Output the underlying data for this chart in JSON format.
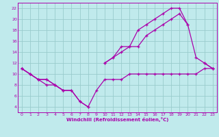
{
  "bg_color": "#c0eaec",
  "line_color": "#aa00aa",
  "grid_color": "#99cccc",
  "xlabel": "Windchill (Refroidissement éolien,°C)",
  "xlim": [
    -0.5,
    23.5
  ],
  "ylim": [
    3,
    23
  ],
  "xticks": [
    0,
    1,
    2,
    3,
    4,
    5,
    6,
    7,
    8,
    9,
    10,
    11,
    12,
    13,
    14,
    15,
    16,
    17,
    18,
    19,
    20,
    21,
    22,
    23
  ],
  "yticks": [
    4,
    6,
    8,
    10,
    12,
    14,
    16,
    18,
    20,
    22
  ],
  "series": [
    {
      "x": [
        0,
        1,
        2,
        3,
        4,
        5,
        6,
        7,
        8,
        9,
        10,
        11,
        12,
        13,
        14,
        15,
        16,
        17,
        18,
        19,
        20,
        21,
        22,
        23
      ],
      "y": [
        11,
        10,
        9,
        9,
        8,
        7,
        7,
        5,
        4,
        7,
        9,
        9,
        9,
        10,
        10,
        10,
        10,
        10,
        10,
        10,
        10,
        10,
        11,
        11
      ]
    },
    {
      "x": [
        0,
        1,
        2,
        3,
        4,
        5,
        6,
        7,
        8,
        9,
        10,
        11,
        12,
        13,
        14,
        15,
        16,
        17,
        18,
        19,
        20,
        21,
        22,
        23
      ],
      "y": [
        11,
        10,
        9,
        8,
        8,
        7,
        7,
        5,
        4,
        null,
        12,
        13,
        14,
        15,
        15,
        17,
        18,
        19,
        20,
        21,
        19,
        13,
        12,
        11
      ]
    },
    {
      "x": [
        0,
        1,
        2,
        3,
        4,
        5,
        6,
        7,
        8,
        9,
        10,
        11,
        12,
        13,
        14,
        15,
        16,
        17,
        18,
        19,
        20,
        21,
        22,
        23
      ],
      "y": [
        11,
        10,
        9,
        9,
        8,
        7,
        null,
        null,
        null,
        null,
        12,
        13,
        15,
        15,
        18,
        19,
        20,
        21,
        22,
        22,
        19,
        null,
        12,
        11
      ]
    }
  ]
}
